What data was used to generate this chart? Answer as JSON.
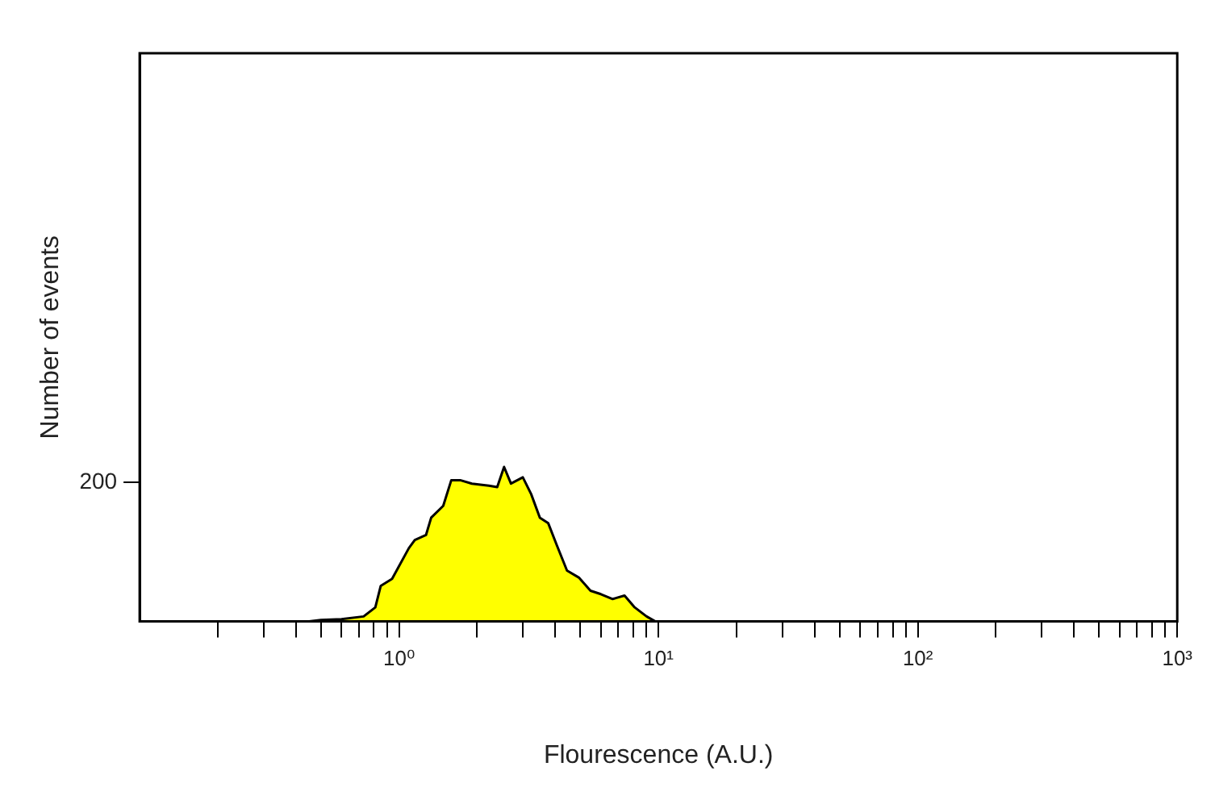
{
  "chart_data": {
    "type": "area",
    "xlabel": "Flourescence (A.U.)",
    "ylabel": "Number of events",
    "log": "x",
    "grid": false,
    "legend": false,
    "marker": "none",
    "xlim": [
      0.1,
      1000
    ],
    "xticks": [
      {
        "value": 0.2,
        "label": null
      },
      {
        "value": 0.3,
        "label": null
      },
      {
        "value": 0.4,
        "label": null
      },
      {
        "value": 0.5,
        "label": null
      },
      {
        "value": 0.6,
        "label": null
      },
      {
        "value": 0.7,
        "label": null
      },
      {
        "value": 0.8,
        "label": null
      },
      {
        "value": 0.9,
        "label": null
      },
      {
        "value": 1,
        "label": "10⁰"
      },
      {
        "value": 2,
        "label": null
      },
      {
        "value": 3,
        "label": null
      },
      {
        "value": 4,
        "label": null
      },
      {
        "value": 5,
        "label": null
      },
      {
        "value": 6,
        "label": null
      },
      {
        "value": 7,
        "label": null
      },
      {
        "value": 8,
        "label": null
      },
      {
        "value": 9,
        "label": null
      },
      {
        "value": 10,
        "label": "10¹"
      },
      {
        "value": 20,
        "label": null
      },
      {
        "value": 30,
        "label": null
      },
      {
        "value": 40,
        "label": null
      },
      {
        "value": 50,
        "label": null
      },
      {
        "value": 60,
        "label": null
      },
      {
        "value": 70,
        "label": null
      },
      {
        "value": 80,
        "label": null
      },
      {
        "value": 90,
        "label": null
      },
      {
        "value": 100,
        "label": "10²"
      },
      {
        "value": 200,
        "label": null
      },
      {
        "value": 300,
        "label": null
      },
      {
        "value": 400,
        "label": null
      },
      {
        "value": 500,
        "label": null
      },
      {
        "value": 600,
        "label": null
      },
      {
        "value": 700,
        "label": null
      },
      {
        "value": 800,
        "label": null
      },
      {
        "value": 900,
        "label": null
      },
      {
        "value": 1000,
        "label": "10³"
      }
    ],
    "ylim": [
      0,
      817
    ],
    "yticks": [
      200
    ],
    "series": [
      {
        "color": "#ffff00",
        "x": [
          0.45,
          0.5,
          0.6,
          0.73,
          0.81,
          0.85,
          0.94,
          1.09,
          1.15,
          1.27,
          1.33,
          1.48,
          1.59,
          1.72,
          1.91,
          2.22,
          2.39,
          2.54,
          2.7,
          3.0,
          3.23,
          3.49,
          3.76,
          4.05,
          4.44,
          4.93,
          5.47,
          6.0,
          6.66,
          7.4,
          8.1,
          9.0,
          9.7
        ],
        "values": [
          0,
          2,
          3,
          7,
          20,
          51,
          61,
          105,
          117,
          124,
          149,
          166,
          203,
          203,
          198,
          195,
          193,
          222,
          198,
          207,
          183,
          149,
          141,
          110,
          73,
          63,
          44,
          39,
          32,
          37,
          20,
          7,
          0
        ]
      }
    ]
  }
}
